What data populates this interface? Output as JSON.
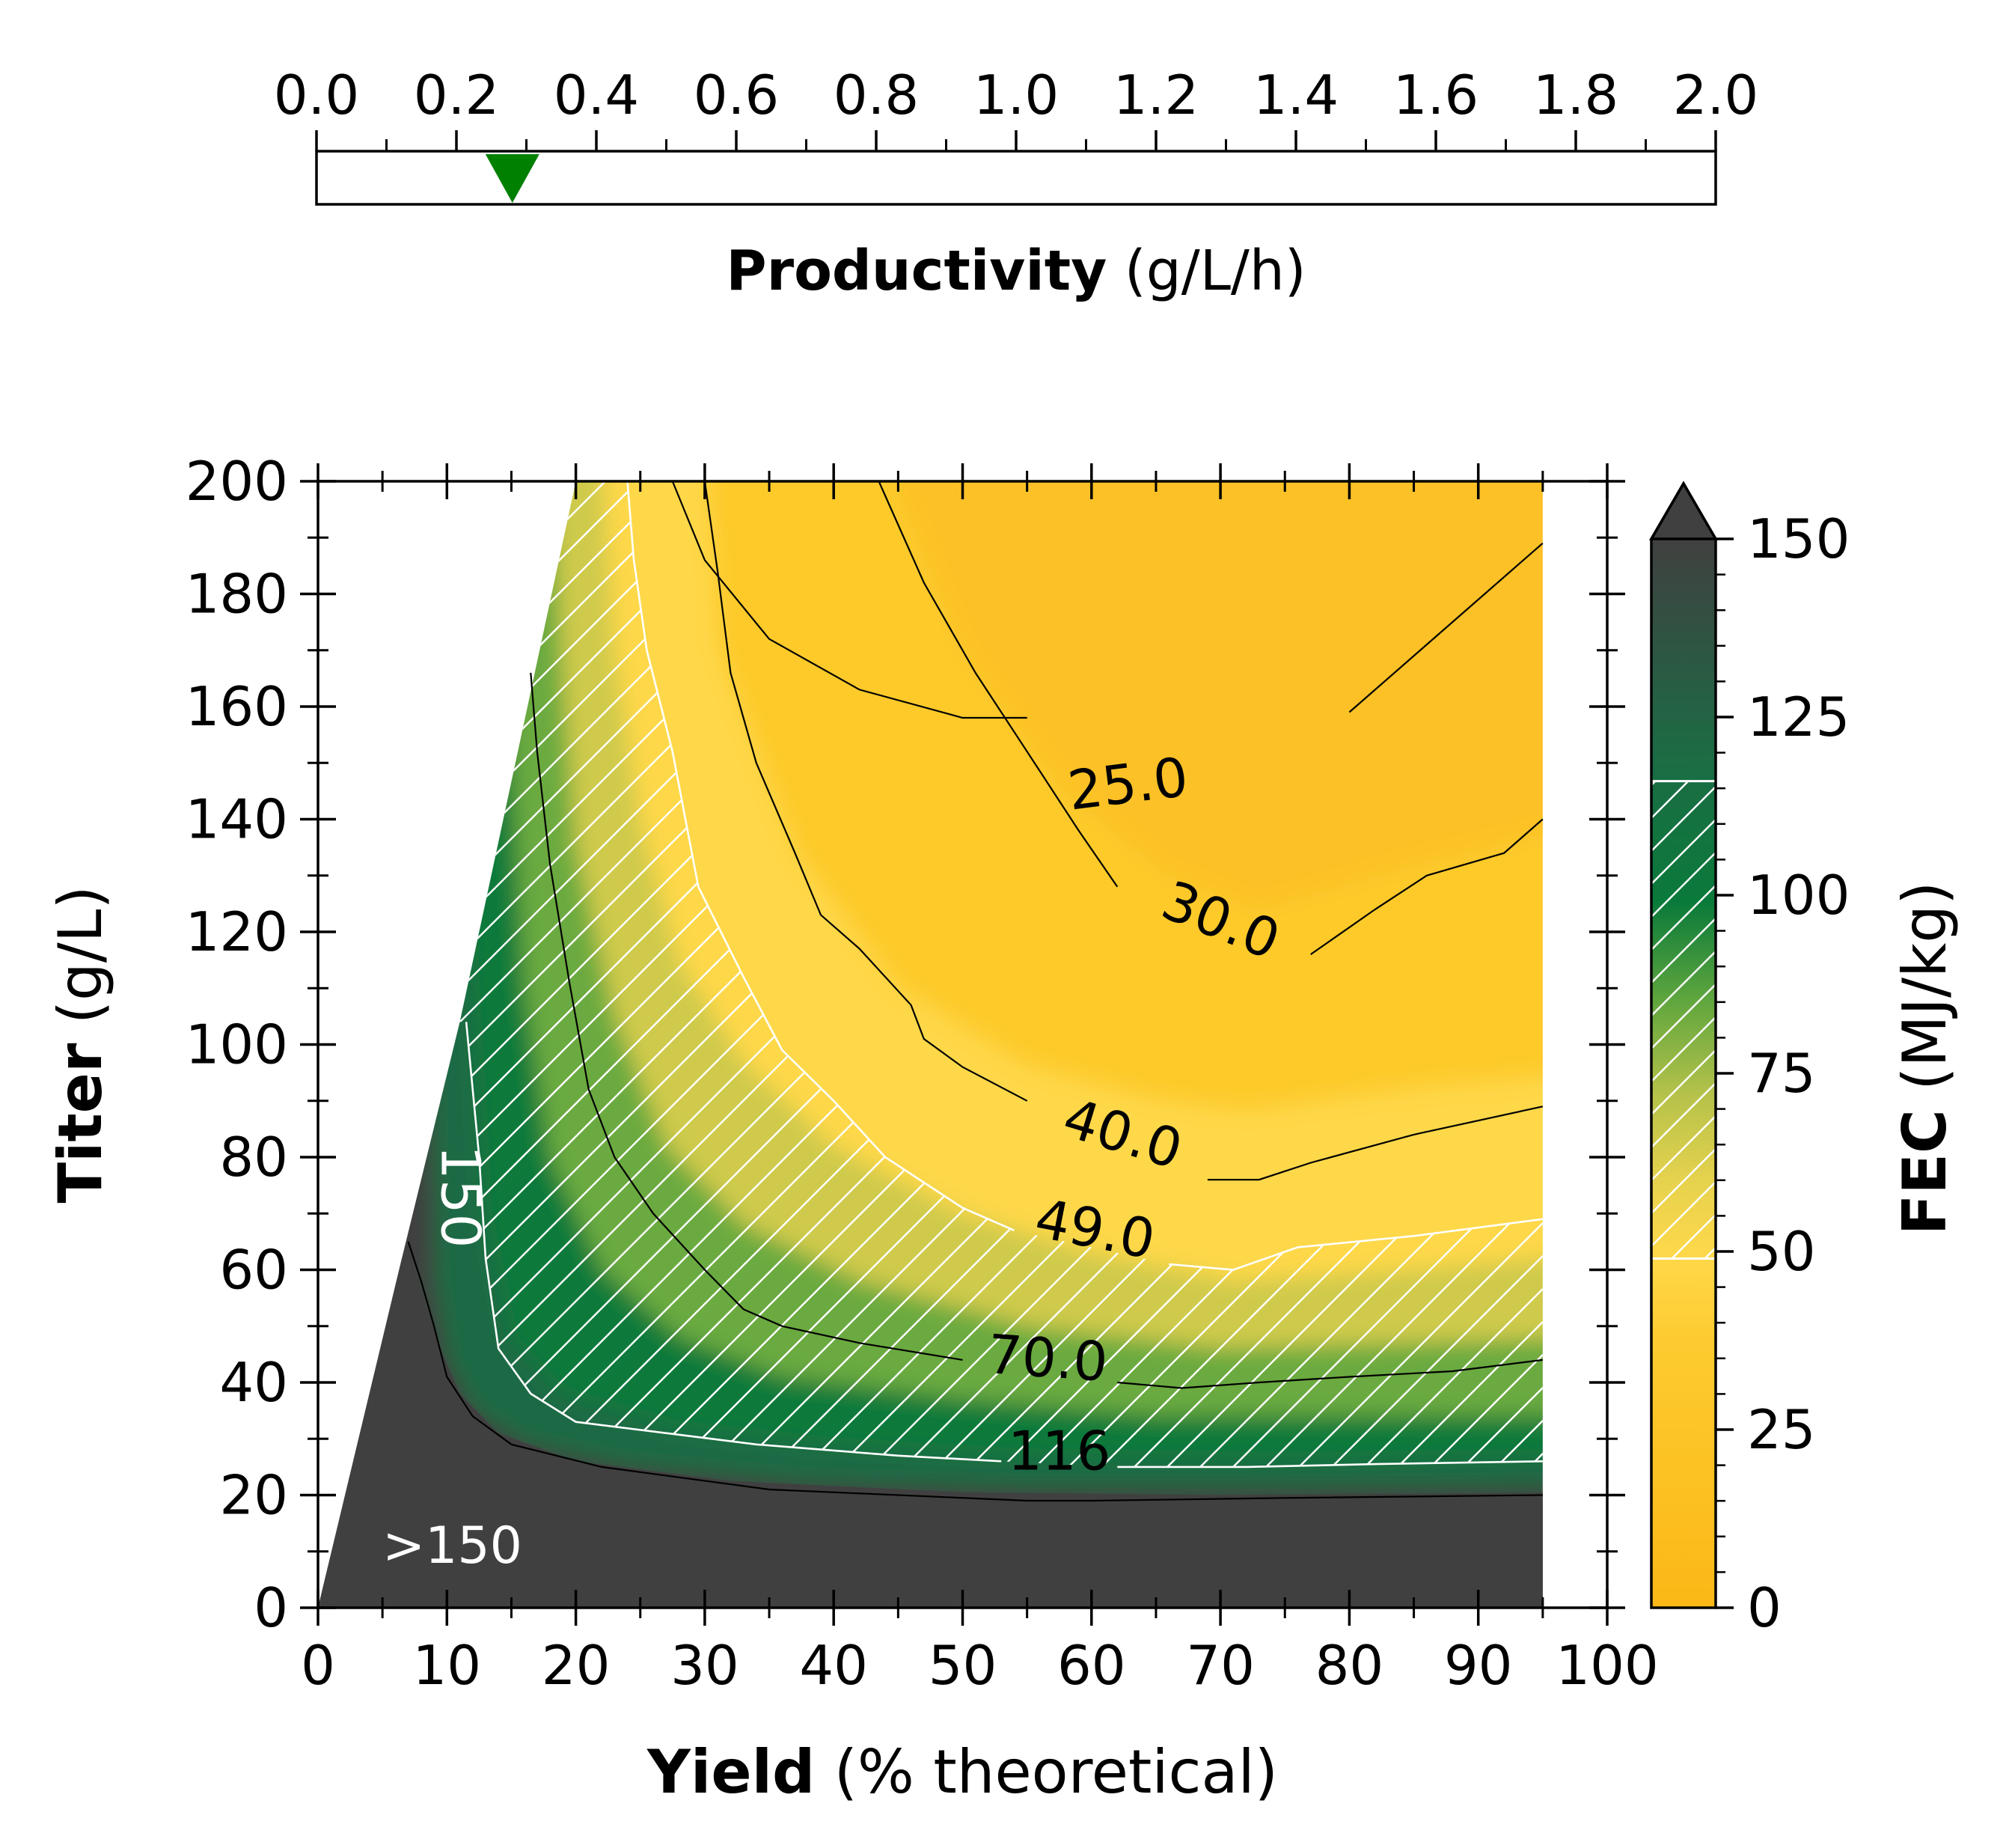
{
  "productivity_bar": {
    "label_bold": "Productivity",
    "label_unit": " (g/L/h)",
    "ticks": [
      "0.0",
      "0.2",
      "0.4",
      "0.6",
      "0.8",
      "1.0",
      "1.2",
      "1.4",
      "1.6",
      "1.8",
      "2.0"
    ],
    "range": [
      0,
      2.0
    ],
    "marker_value": 0.28,
    "marker_color": "#008000"
  },
  "chart_data": {
    "type": "contour",
    "xlabel_bold": "Yield",
    "xlabel_unit": " (% theoretical)",
    "ylabel_bold": "Titer",
    "ylabel_unit": " (g/L)",
    "xlim": [
      0,
      100
    ],
    "ylim": [
      0,
      200
    ],
    "x_ticks": [
      "0",
      "10",
      "20",
      "30",
      "40",
      "50",
      "60",
      "70",
      "80",
      "90",
      "100"
    ],
    "y_ticks": [
      "0",
      "20",
      "40",
      "60",
      "80",
      "100",
      "120",
      "140",
      "160",
      "180",
      "200"
    ],
    "x_data_max": 95,
    "region_over_label": ">150",
    "colors": {
      "low": "#fbb816",
      "mid_low": "#fed84a",
      "mid": "#c6c84e",
      "green": "#0a7a3a",
      "dark_green": "#1f6a44",
      "over": "#404040"
    },
    "contours": [
      {
        "label": "25.0",
        "points": [
          [
            27.5,
            200
          ],
          [
            30,
            186
          ],
          [
            35,
            172
          ],
          [
            42,
            163
          ],
          [
            50,
            158
          ],
          [
            55,
            158
          ]
        ],
        "points2": [
          [
            80,
            159
          ],
          [
            95,
            189
          ]
        ]
      },
      {
        "label": "30.0",
        "points": [
          [
            43.5,
            200
          ],
          [
            47,
            182
          ],
          [
            51,
            166
          ],
          [
            55,
            152
          ],
          [
            59,
            138
          ],
          [
            62,
            128
          ]
        ],
        "points2": [
          [
            77,
            116
          ],
          [
            82,
            124
          ],
          [
            86,
            130
          ],
          [
            92,
            134
          ],
          [
            95,
            140
          ]
        ]
      },
      {
        "label": "40.0",
        "points": [
          [
            30,
            200
          ],
          [
            31,
            184
          ],
          [
            32,
            166
          ],
          [
            34,
            150
          ],
          [
            37,
            134
          ],
          [
            39,
            123
          ],
          [
            42,
            117
          ],
          [
            46,
            107
          ],
          [
            47,
            101
          ],
          [
            50,
            96
          ],
          [
            55,
            90
          ]
        ],
        "points2": [
          [
            69,
            76
          ],
          [
            73,
            76
          ],
          [
            77,
            79
          ],
          [
            85,
            84
          ],
          [
            95,
            89
          ]
        ]
      },
      {
        "label": "49.0",
        "points": [
          [
            24,
            200
          ],
          [
            24.5,
            186
          ],
          [
            25.5,
            170
          ],
          [
            27.5,
            152
          ],
          [
            29.5,
            128
          ],
          [
            33,
            112
          ],
          [
            36,
            99
          ],
          [
            40,
            90
          ],
          [
            44,
            80
          ],
          [
            50,
            71
          ],
          [
            54,
            67
          ]
        ],
        "points2": [
          [
            66,
            61
          ],
          [
            71,
            60
          ],
          [
            76,
            64
          ],
          [
            85,
            66
          ],
          [
            95,
            69
          ]
        ]
      },
      {
        "label": "70.0",
        "points": [
          [
            16.5,
            166
          ],
          [
            17,
            152
          ],
          [
            18,
            132
          ],
          [
            19.5,
            111
          ],
          [
            21,
            92
          ],
          [
            23,
            80
          ],
          [
            26,
            70
          ],
          [
            30,
            60
          ],
          [
            33,
            53
          ],
          [
            36,
            50
          ],
          [
            42,
            47
          ],
          [
            50,
            44
          ]
        ],
        "points2": [
          [
            62,
            40
          ],
          [
            67,
            39
          ],
          [
            73,
            40
          ],
          [
            80,
            41
          ],
          [
            88,
            42
          ],
          [
            95,
            44
          ]
        ]
      },
      {
        "label": "116",
        "points": [
          [
            11.5,
            104
          ],
          [
            12.5,
            80
          ],
          [
            13,
            62
          ],
          [
            14,
            46
          ],
          [
            16.5,
            38
          ],
          [
            20,
            33
          ],
          [
            27,
            31
          ],
          [
            34,
            29
          ],
          [
            45,
            27
          ],
          [
            53,
            26
          ]
        ],
        "points2": [
          [
            62,
            25
          ],
          [
            72,
            25
          ],
          [
            82,
            25.5
          ],
          [
            95,
            26
          ]
        ]
      },
      {
        "label": "150",
        "points": [
          [
            7,
            65
          ],
          [
            8,
            58
          ],
          [
            9,
            50
          ],
          [
            10,
            41
          ],
          [
            12,
            34
          ],
          [
            15,
            29
          ],
          [
            22,
            25
          ],
          [
            35,
            21
          ],
          [
            55,
            19
          ],
          [
            60,
            19
          ],
          [
            75,
            19.5
          ],
          [
            95,
            20
          ]
        ]
      }
    ],
    "colorbar": {
      "label_bold": "FEC",
      "label_unit": " (MJ/kg)",
      "ticks": [
        "0",
        "25",
        "50",
        "75",
        "100",
        "125",
        "150"
      ],
      "range": [
        0,
        150
      ],
      "hatch_range": [
        49,
        116
      ],
      "extend": "max"
    }
  }
}
